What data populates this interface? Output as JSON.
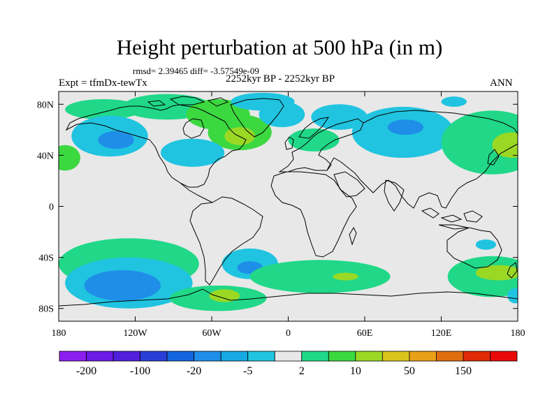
{
  "chart_data": {
    "type": "heatmap",
    "title": "Height perturbation at 500 hPa (in m)",
    "stats_line": "rmsd= 2.39465 diff= -3.57549e-09",
    "left_label": "Expt = tfmDx-tewTx",
    "center_label": "2252kyr BP - 2252kyr BP",
    "right_label": "ANN",
    "projection": "cylindrical equidistant",
    "xlim": [
      -180,
      180
    ],
    "ylim": [
      -90,
      90
    ],
    "x_ticks": [
      {
        "value": -180,
        "label": "180"
      },
      {
        "value": -120,
        "label": "120W"
      },
      {
        "value": -60,
        "label": "60W"
      },
      {
        "value": 0,
        "label": "0"
      },
      {
        "value": 60,
        "label": "60E"
      },
      {
        "value": 120,
        "label": "120E"
      },
      {
        "value": 180,
        "label": "180"
      }
    ],
    "y_ticks": [
      {
        "value": 80,
        "label": "80N"
      },
      {
        "value": 40,
        "label": "40N"
      },
      {
        "value": 0,
        "label": "0"
      },
      {
        "value": -40,
        "label": "40S"
      },
      {
        "value": -80,
        "label": "80S"
      }
    ],
    "colorbar": {
      "levels": [
        -200,
        -150,
        -100,
        -50,
        -20,
        -10,
        -5,
        -2,
        2,
        5,
        10,
        20,
        50,
        100,
        150,
        200
      ],
      "labels": [
        {
          "level": -200,
          "label": "-200"
        },
        {
          "level": -100,
          "label": "-100"
        },
        {
          "level": -20,
          "label": "-20"
        },
        {
          "level": -5,
          "label": "-5"
        },
        {
          "level": 2,
          "label": "2"
        },
        {
          "level": 10,
          "label": "10"
        },
        {
          "level": 50,
          "label": "50"
        },
        {
          "level": 150,
          "label": "150"
        }
      ],
      "colors": [
        "#8c1ff0",
        "#6c1ae6",
        "#5020dc",
        "#2a3ed6",
        "#1466de",
        "#1f8ee8",
        "#18a8e2",
        "#20c4e0",
        "#e8e8e8",
        "#20d888",
        "#3cd840",
        "#9ad824",
        "#d8c41c",
        "#e8a018",
        "#e06c10",
        "#e02a08",
        "#e80a0a"
      ]
    },
    "regions": [
      {
        "lon": -95,
        "lat": 78,
        "rlon": 35,
        "rlat": 10,
        "value": 4
      },
      {
        "lon": -55,
        "lat": 72,
        "rlon": 25,
        "rlat": 12,
        "value": 5
      },
      {
        "lon": -145,
        "lat": 76,
        "rlon": 30,
        "rlat": 8,
        "value": 3
      },
      {
        "lon": -38,
        "lat": 58,
        "rlon": 25,
        "rlat": 14,
        "value": 6
      },
      {
        "lon": -38,
        "lat": 55,
        "rlon": 12,
        "rlat": 7,
        "value": 12
      },
      {
        "lon": -140,
        "lat": 55,
        "rlon": 30,
        "rlat": 16,
        "value": -5
      },
      {
        "lon": -135,
        "lat": 52,
        "rlon": 14,
        "rlat": 7,
        "value": -12
      },
      {
        "lon": -20,
        "lat": 82,
        "rlon": 25,
        "rlat": 7,
        "value": -4
      },
      {
        "lon": -5,
        "lat": 72,
        "rlon": 18,
        "rlat": 10,
        "value": -4
      },
      {
        "lon": -75,
        "lat": 42,
        "rlon": 25,
        "rlat": 11,
        "value": -5
      },
      {
        "lon": 90,
        "lat": 58,
        "rlon": 40,
        "rlat": 20,
        "value": -5
      },
      {
        "lon": 92,
        "lat": 62,
        "rlon": 14,
        "rlat": 6,
        "value": -12
      },
      {
        "lon": 40,
        "lat": 70,
        "rlon": 22,
        "rlat": 10,
        "value": -4
      },
      {
        "lon": 20,
        "lat": 52,
        "rlon": 20,
        "rlat": 9,
        "value": 4
      },
      {
        "lon": 130,
        "lat": 82,
        "rlon": 10,
        "rlat": 4,
        "value": -4
      },
      {
        "lon": 160,
        "lat": 50,
        "rlon": 40,
        "rlat": 25,
        "value": 4
      },
      {
        "lon": 175,
        "lat": 48,
        "rlon": 15,
        "rlat": 10,
        "value": 12
      },
      {
        "lon": -175,
        "lat": 38,
        "rlon": 12,
        "rlat": 10,
        "value": 5
      },
      {
        "lon": -125,
        "lat": -45,
        "rlon": 55,
        "rlat": 20,
        "value": 4
      },
      {
        "lon": -125,
        "lat": -60,
        "rlon": 50,
        "rlat": 20,
        "value": -5
      },
      {
        "lon": -130,
        "lat": -62,
        "rlon": 30,
        "rlat": 12,
        "value": -12
      },
      {
        "lon": -30,
        "lat": -45,
        "rlon": 22,
        "rlat": 12,
        "value": -5
      },
      {
        "lon": -30,
        "lat": -48,
        "rlon": 10,
        "rlat": 5,
        "value": -12
      },
      {
        "lon": 25,
        "lat": -55,
        "rlon": 55,
        "rlat": 13,
        "value": 4
      },
      {
        "lon": -55,
        "lat": -72,
        "rlon": 38,
        "rlat": 10,
        "value": 4
      },
      {
        "lon": -50,
        "lat": -70,
        "rlon": 12,
        "rlat": 5,
        "value": 12
      },
      {
        "lon": 45,
        "lat": -55,
        "rlon": 10,
        "rlat": 3,
        "value": 12
      },
      {
        "lon": 160,
        "lat": -55,
        "rlon": 35,
        "rlat": 16,
        "value": 4
      },
      {
        "lon": 165,
        "lat": -52,
        "rlon": 18,
        "rlat": 6,
        "value": 12
      },
      {
        "lon": 155,
        "lat": -30,
        "rlon": 8,
        "rlat": 4,
        "value": -4
      },
      {
        "lon": 178,
        "lat": -70,
        "rlon": 6,
        "rlat": 6,
        "value": -5
      }
    ]
  }
}
